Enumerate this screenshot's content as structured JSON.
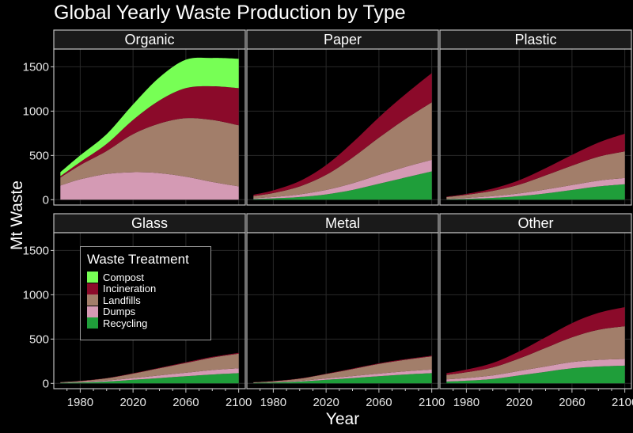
{
  "title": "Global Yearly Waste Production by Type",
  "legend": {
    "title": "Waste Treatment",
    "items": [
      {
        "label": "Compost",
        "color": "#77ff55"
      },
      {
        "label": "Incineration",
        "color": "#8b0a2a"
      },
      {
        "label": "Landfills",
        "color": "#a27e6a"
      },
      {
        "label": "Dumps",
        "color": "#d49ab4"
      },
      {
        "label": "Recycling",
        "color": "#1f9e3a"
      }
    ]
  },
  "chart_data": {
    "type": "area",
    "title": "Global Yearly Waste Production by Type",
    "xlabel": "Year",
    "ylabel": "Mt Waste",
    "x": [
      1965,
      1980,
      2000,
      2020,
      2040,
      2060,
      2080,
      2100
    ],
    "xticks": [
      1980,
      2020,
      2060,
      2100
    ],
    "yticks": [
      0,
      500,
      1000,
      1500
    ],
    "xlim": [
      1960,
      2105
    ],
    "ylim": [
      -60,
      1700
    ],
    "stack_order": [
      "Recycling",
      "Dumps",
      "Landfills",
      "Incineration",
      "Compost"
    ],
    "grid": true,
    "legend_position": "inside lower-left",
    "panels": [
      {
        "label": "Organic",
        "series": [
          {
            "name": "Recycling",
            "values": [
              0,
              0,
              0,
              0,
              0,
              0,
              0,
              0
            ]
          },
          {
            "name": "Dumps",
            "values": [
              160,
              230,
              290,
              310,
              300,
              260,
              200,
              150
            ]
          },
          {
            "name": "Landfills",
            "values": [
              90,
              160,
              260,
              430,
              560,
              660,
              700,
              690
            ]
          },
          {
            "name": "Incineration",
            "values": [
              15,
              35,
              80,
              160,
              260,
              340,
              380,
              420
            ]
          },
          {
            "name": "Compost",
            "values": [
              45,
              75,
              110,
              175,
              260,
              320,
              320,
              330
            ]
          }
        ]
      },
      {
        "label": "Paper",
        "series": [
          {
            "name": "Recycling",
            "values": [
              8,
              15,
              30,
              60,
              110,
              180,
              250,
              320
            ]
          },
          {
            "name": "Dumps",
            "values": [
              8,
              15,
              30,
              50,
              75,
              100,
              120,
              130
            ]
          },
          {
            "name": "Landfills",
            "values": [
              25,
              45,
              90,
              170,
              290,
              420,
              540,
              650
            ]
          },
          {
            "name": "Incineration",
            "values": [
              15,
              30,
              60,
              110,
              170,
              230,
              280,
              330
            ]
          },
          {
            "name": "Compost",
            "values": [
              0,
              0,
              0,
              0,
              0,
              0,
              0,
              0
            ]
          }
        ]
      },
      {
        "label": "Plastic",
        "series": [
          {
            "name": "Recycling",
            "values": [
              5,
              10,
              20,
              40,
              70,
              110,
              150,
              175
            ]
          },
          {
            "name": "Dumps",
            "values": [
              5,
              10,
              20,
              30,
              45,
              55,
              65,
              70
            ]
          },
          {
            "name": "Landfills",
            "values": [
              20,
              35,
              60,
              100,
              160,
              220,
              270,
              300
            ]
          },
          {
            "name": "Incineration",
            "values": [
              5,
              10,
              25,
              50,
              80,
              120,
              160,
              200
            ]
          },
          {
            "name": "Compost",
            "values": [
              0,
              0,
              0,
              0,
              0,
              0,
              0,
              0
            ]
          }
        ]
      },
      {
        "label": "Glass",
        "series": [
          {
            "name": "Recycling",
            "values": [
              5,
              10,
              20,
              40,
              60,
              80,
              100,
              115
            ]
          },
          {
            "name": "Dumps",
            "values": [
              3,
              6,
              12,
              20,
              30,
              40,
              50,
              55
            ]
          },
          {
            "name": "Landfills",
            "values": [
              5,
              10,
              25,
              50,
              80,
              110,
              140,
              165
            ]
          },
          {
            "name": "Incineration",
            "values": [
              1,
              2,
              3,
              4,
              6,
              8,
              9,
              10
            ]
          },
          {
            "name": "Compost",
            "values": [
              0,
              0,
              0,
              0,
              0,
              0,
              0,
              0
            ]
          }
        ]
      },
      {
        "label": "Metal",
        "series": [
          {
            "name": "Recycling",
            "values": [
              5,
              10,
              20,
              40,
              60,
              80,
              100,
              115
            ]
          },
          {
            "name": "Dumps",
            "values": [
              2,
              4,
              8,
              15,
              22,
              30,
              36,
              40
            ]
          },
          {
            "name": "Landfills",
            "values": [
              5,
              10,
              25,
              50,
              80,
              110,
              130,
              150
            ]
          },
          {
            "name": "Incineration",
            "values": [
              1,
              2,
              3,
              4,
              5,
              6,
              7,
              8
            ]
          },
          {
            "name": "Compost",
            "values": [
              0,
              0,
              0,
              0,
              0,
              0,
              0,
              0
            ]
          }
        ]
      },
      {
        "label": "Other",
        "series": [
          {
            "name": "Recycling",
            "values": [
              20,
              30,
              50,
              90,
              130,
              170,
              190,
              200
            ]
          },
          {
            "name": "Dumps",
            "values": [
              25,
              30,
              40,
              50,
              60,
              70,
              75,
              75
            ]
          },
          {
            "name": "Landfills",
            "values": [
              50,
              65,
              90,
              140,
              210,
              280,
              340,
              370
            ]
          },
          {
            "name": "Incineration",
            "values": [
              20,
              30,
              50,
              80,
              120,
              160,
              190,
              215
            ]
          },
          {
            "name": "Compost",
            "values": [
              0,
              0,
              0,
              0,
              0,
              0,
              0,
              0
            ]
          }
        ]
      }
    ]
  }
}
